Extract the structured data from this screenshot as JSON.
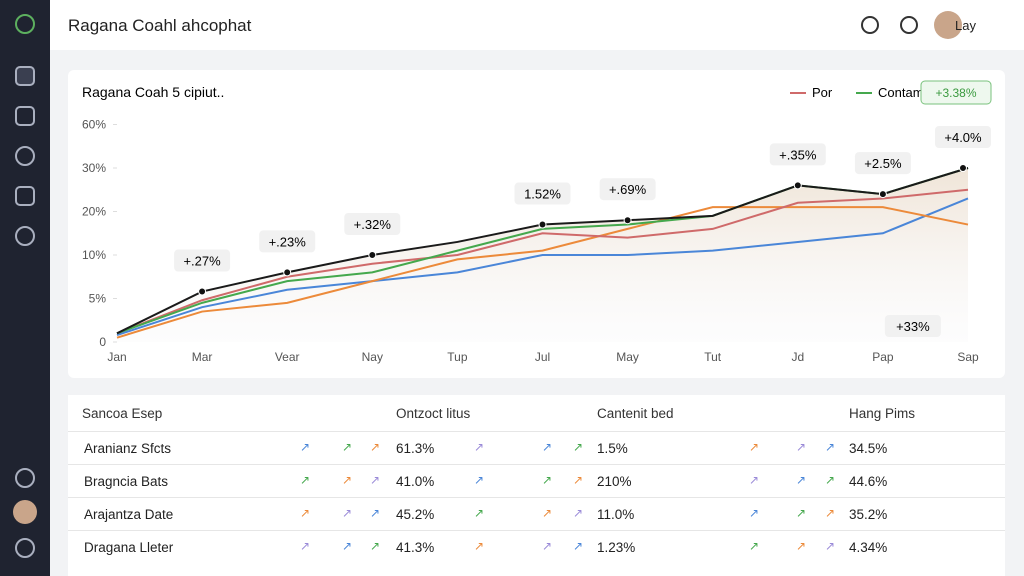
{
  "header": {
    "title": "Ragana Coahl ahcophat",
    "user": "Lay"
  },
  "chart_data": {
    "type": "line",
    "title": "Ragana Coah 5 cipiut..",
    "legend": [
      "Por",
      "Contame"
    ],
    "badge": "+3.38%",
    "categories": [
      "Jan",
      "Mar",
      "Vear",
      "Nay",
      "Tup",
      "Jul",
      "May",
      "Tut",
      "Jd",
      "Pap",
      "Sap"
    ],
    "ylim": [
      0,
      60
    ],
    "yticks": [
      {
        "value": 0,
        "label": "0"
      },
      {
        "value": 5,
        "label": "5%"
      },
      {
        "value": 10,
        "label": "10%"
      },
      {
        "value": 20,
        "label": "20%"
      },
      {
        "value": 30,
        "label": "30%"
      },
      {
        "value": 60,
        "label": "60%"
      }
    ],
    "series": [
      {
        "color": "#4a86d8",
        "values": [
          0.8,
          4,
          6,
          7,
          8,
          10,
          10,
          11,
          13,
          15,
          23
        ]
      },
      {
        "color": "#ec8a3a",
        "values": [
          0.5,
          3.5,
          4.5,
          7,
          9.5,
          11,
          16,
          21,
          21,
          21,
          17
        ]
      },
      {
        "name": "Por",
        "color": "#cf6a6a",
        "values": [
          1,
          4.8,
          7.5,
          9,
          10,
          15,
          14,
          16,
          22,
          23,
          25
        ]
      },
      {
        "name": "Contame",
        "color": "#45a84d",
        "values": [
          1,
          4.5,
          7,
          8,
          11,
          16,
          17,
          19,
          26,
          24,
          30
        ]
      },
      {
        "color": "#1a1a1a",
        "values": [
          1,
          5.8,
          8,
          10,
          13,
          17,
          18,
          19,
          26,
          24,
          30
        ]
      }
    ],
    "annotations": [
      "+.27%",
      "+.23%",
      "+.32%",
      "1.52%",
      "+.69%",
      "+.35%",
      "+2.5%",
      "+4.0%",
      "+33%"
    ]
  },
  "table": {
    "columns": [
      "Sancoa Esep",
      "Ontzoct litus",
      "Cantenit bed",
      "Hang Pims"
    ],
    "rows": [
      [
        "Aranianz Sfcts",
        "61.3%",
        "1.5%",
        "34.5%"
      ],
      [
        "Bragncia Bats",
        "41.0%",
        "210%",
        "44.6%"
      ],
      [
        "Arajantza Date",
        "45.2%",
        "11.0%",
        "35.2%"
      ],
      [
        "Dragana Lleter",
        "41.3%",
        "1.23%",
        "4.34%"
      ]
    ]
  }
}
